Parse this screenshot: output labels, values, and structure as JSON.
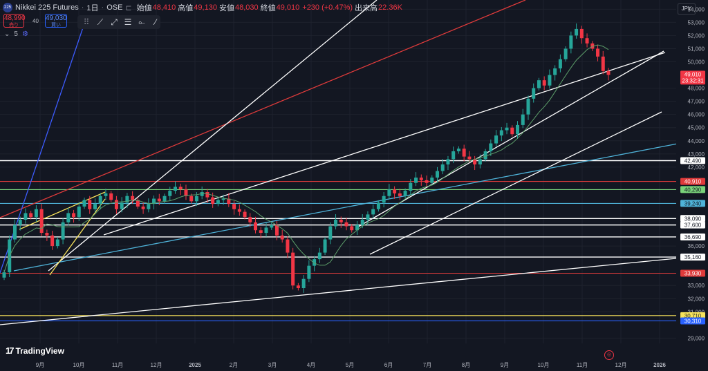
{
  "header": {
    "symbol_logo": "225",
    "symbol": "Nikkei 225 Futures",
    "interval": "1日",
    "exchange": "OSE",
    "open_label": "始値",
    "open": "48,410",
    "high_label": "高値",
    "high": "49,130",
    "low_label": "安値",
    "low": "48,030",
    "close_label": "終値",
    "close": "49,010",
    "change": "+230 (+0.47%)",
    "volume_label": "出来高",
    "volume": "22.36K"
  },
  "quote": {
    "sell_price": "48,990",
    "sell_label": "売り",
    "spread": "40",
    "buy_price": "49,030",
    "buy_label": "買い"
  },
  "indicator_count": "5",
  "currency": "JPY",
  "brand": "TradingView",
  "colors": {
    "bg": "#131722",
    "up": "#26a69a",
    "down": "#f23645",
    "white_line": "#ffffff",
    "red_line": "#e03b3b",
    "yellow_line": "#f7e35b",
    "blue_line": "#3d5cff",
    "cyan_line": "#4fb3d9",
    "green_line": "#7ad37a",
    "ma_line": "#5d9f6a"
  },
  "price_axis": {
    "min": 28600,
    "max": 54700,
    "ticks": [
      "54,000",
      "53,000",
      "52,000",
      "51,000",
      "50,000",
      "48,000",
      "47,000",
      "46,000",
      "45,000",
      "44,000",
      "43,000",
      "42,000",
      "36,000",
      "33,000",
      "32,000",
      "31,000",
      "29,000"
    ]
  },
  "time_axis": {
    "labels": [
      "9月",
      "10月",
      "11月",
      "12月",
      "2025",
      "2月",
      "3月",
      "4月",
      "5月",
      "6月",
      "7月",
      "8月",
      "9月",
      "10月",
      "11月",
      "12月",
      "2026"
    ]
  },
  "price_tags": [
    {
      "label": "49,010",
      "sub": "23:32:31",
      "price": 49010,
      "bg": "#f23645",
      "fg": "#ffffff"
    },
    {
      "label": "42,490",
      "price": 42490,
      "bg": "#ffffff",
      "fg": "#131722"
    },
    {
      "label": "40,910",
      "price": 40910,
      "bg": "#e03b3b",
      "fg": "#ffffff"
    },
    {
      "label": "40,290",
      "price": 40290,
      "bg": "#7ad37a",
      "fg": "#131722"
    },
    {
      "label": "39,240",
      "price": 39240,
      "bg": "#4fb3d9",
      "fg": "#131722"
    },
    {
      "label": "38,090",
      "price": 38090,
      "bg": "#ffffff",
      "fg": "#131722"
    },
    {
      "label": "37,600",
      "price": 37600,
      "bg": "#ffffff",
      "fg": "#131722"
    },
    {
      "label": "36,690",
      "price": 36690,
      "bg": "#ffffff",
      "fg": "#131722"
    },
    {
      "label": "35,160",
      "price": 35160,
      "bg": "#ffffff",
      "fg": "#131722"
    },
    {
      "label": "33,930",
      "price": 33930,
      "bg": "#e03b3b",
      "fg": "#ffffff"
    },
    {
      "label": "30,710",
      "price": 30710,
      "bg": "#f7e35b",
      "fg": "#131722"
    },
    {
      "label": "30,310",
      "price": 30310,
      "bg": "#2962ff",
      "fg": "#ffffff"
    }
  ],
  "chart_data": {
    "type": "candlestick",
    "ylim": [
      28600,
      54700
    ],
    "closes": [
      34000,
      36500,
      37600,
      38000,
      38500,
      38200,
      38800,
      37000,
      36800,
      36000,
      36500,
      37800,
      38500,
      38200,
      39000,
      39500,
      38800,
      39200,
      39800,
      40000,
      39500,
      38800,
      39300,
      39800,
      39500,
      39000,
      38800,
      39200,
      39600,
      39400,
      39800,
      40200,
      40500,
      40300,
      39800,
      39400,
      39800,
      40100,
      39700,
      39200,
      39500,
      39600,
      39200,
      38800,
      38600,
      38200,
      37800,
      37200,
      37000,
      37400,
      37600,
      36800,
      36500,
      35500,
      33000,
      32800,
      33500,
      34500,
      35000,
      35500,
      36500,
      37500,
      38000,
      37800,
      37500,
      37200,
      37600,
      38000,
      38400,
      38800,
      39300,
      39800,
      40300,
      40000,
      39800,
      40200,
      40800,
      41200,
      41000,
      40800,
      41200,
      41700,
      42200,
      42600,
      43200,
      43400,
      42800,
      42600,
      42200,
      42600,
      43200,
      43800,
      44400,
      44800,
      45000,
      44500,
      45200,
      46000,
      47200,
      48000,
      48600,
      48200,
      49000,
      49500,
      50200,
      51000,
      52000,
      52500,
      51800,
      51400,
      51000,
      50400,
      49300,
      49010
    ]
  }
}
